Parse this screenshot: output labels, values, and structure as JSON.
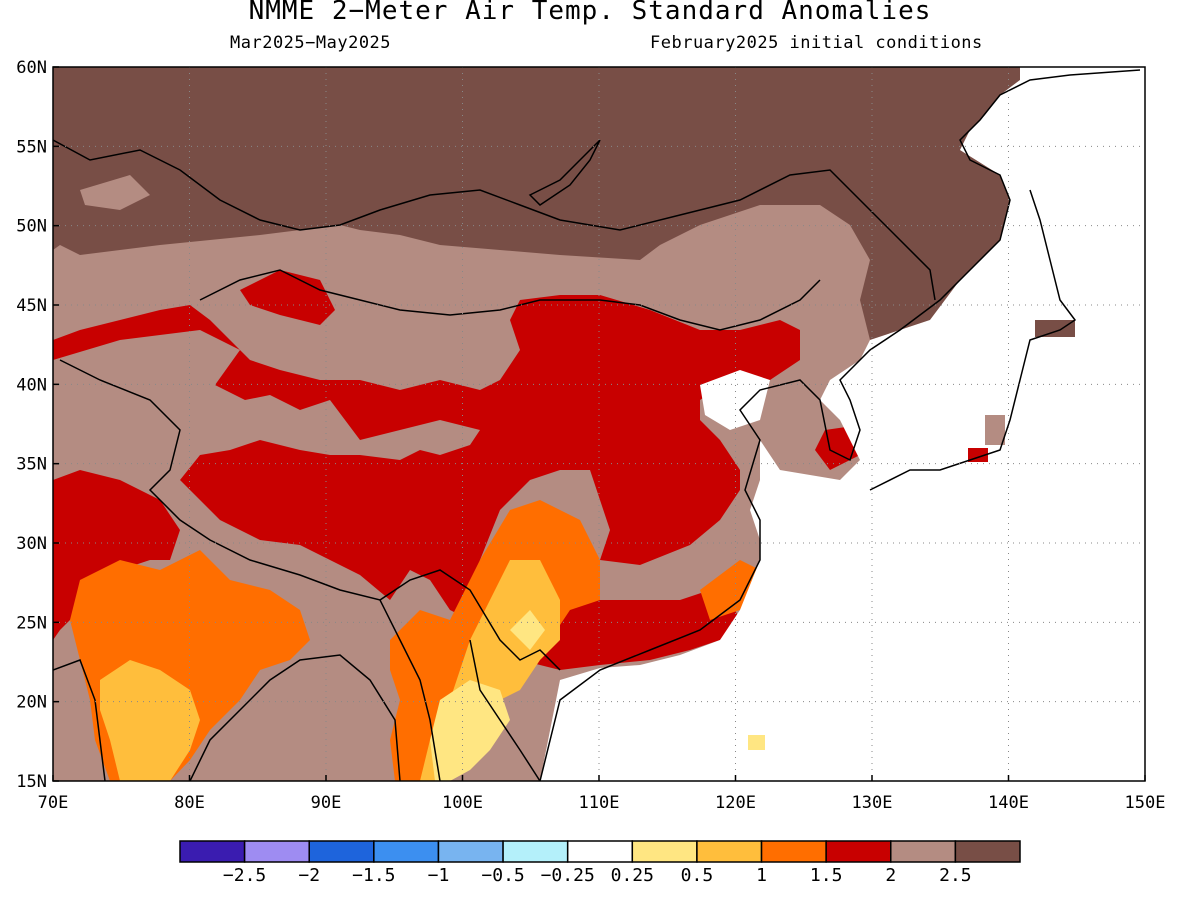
{
  "title": "NMME 2−Meter Air Temp. Standard Anomalies",
  "subtitle_left": "Mar2025−May2025",
  "subtitle_right": "February2025 initial conditions",
  "map": {
    "lon_range": [
      70,
      150
    ],
    "lat_range": [
      15,
      60
    ],
    "lon_ticks": [
      "70E",
      "80E",
      "90E",
      "100E",
      "110E",
      "120E",
      "130E",
      "140E",
      "150E"
    ],
    "lat_ticks": [
      "15N",
      "20N",
      "25N",
      "30N",
      "35N",
      "40N",
      "45N",
      "50N",
      "55N",
      "60N"
    ],
    "gridlines": "dotted"
  },
  "colorbar": {
    "colors": [
      "#3a1cb0",
      "#9e8cf2",
      "#1e64dc",
      "#3c8ff0",
      "#78b4f0",
      "#b4f0fa",
      "#ffffff",
      "#ffe682",
      "#ffbe3c",
      "#ff6e00",
      "#c80000",
      "#b48c82",
      "#784e46"
    ],
    "labels": [
      "−2.5",
      "−2",
      "−1.5",
      "−1",
      "−0.5",
      "−0.25",
      "0.25",
      "0.5",
      "1",
      "1.5",
      "2",
      "2.5"
    ]
  }
}
